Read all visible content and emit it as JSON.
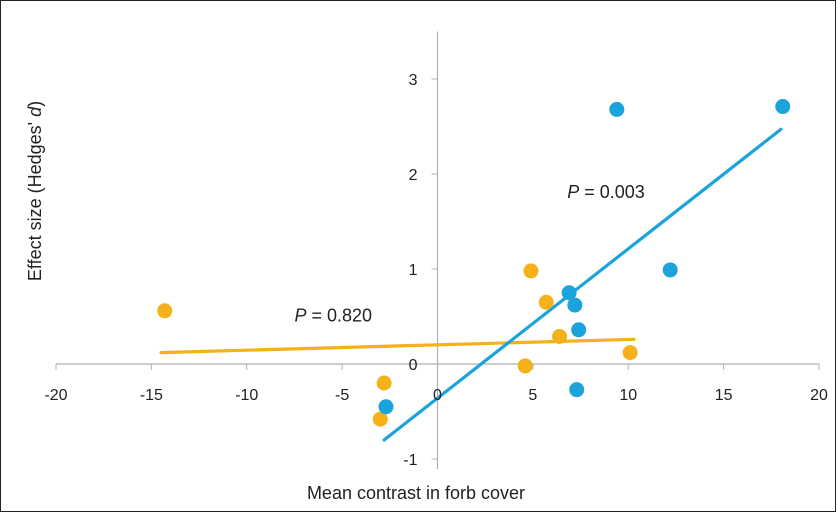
{
  "chart_data": {
    "type": "scatter",
    "xlabel": "Mean contrast in forb cover",
    "ylabel_parts": {
      "main": "Effect size (Hedges' ",
      "italic": "d",
      "end": ")"
    },
    "xlim": [
      -20,
      20
    ],
    "ylim": [
      -1,
      3.5
    ],
    "x_ticks": [
      -20,
      -15,
      -10,
      -5,
      0,
      5,
      10,
      15,
      20
    ],
    "x_tick_labels": [
      "-20",
      "-15",
      "-10",
      "-5",
      "0",
      "5",
      "10",
      "15",
      "20"
    ],
    "y_ticks": [
      -1,
      0,
      1,
      2,
      3
    ],
    "y_tick_labels": [
      "-1",
      "0",
      "1",
      "2",
      "3"
    ],
    "grid": false,
    "series": [
      {
        "color": "#f5b119",
        "points": [
          {
            "x": -14.3,
            "y": 0.56
          },
          {
            "x": -2.8,
            "y": -0.2
          },
          {
            "x": -3.0,
            "y": -0.58
          },
          {
            "x": 4.6,
            "y": -0.02
          },
          {
            "x": 4.9,
            "y": 0.98
          },
          {
            "x": 5.7,
            "y": 0.65
          },
          {
            "x": 6.4,
            "y": 0.29
          },
          {
            "x": 10.1,
            "y": 0.12
          }
        ],
        "trend": {
          "x": [
            -14.5,
            10.3
          ],
          "y": [
            0.12,
            0.26
          ]
        },
        "annotation": {
          "prefix": "P",
          "text": " = 0.820",
          "x": -7.5,
          "y": 0.45
        }
      },
      {
        "color": "#1ba3dc",
        "points": [
          {
            "x": -2.7,
            "y": -0.45
          },
          {
            "x": 6.9,
            "y": 0.75
          },
          {
            "x": 7.2,
            "y": 0.62
          },
          {
            "x": 7.4,
            "y": 0.36
          },
          {
            "x": 7.3,
            "y": -0.27
          },
          {
            "x": 9.4,
            "y": 2.68
          },
          {
            "x": 12.2,
            "y": 0.99
          },
          {
            "x": 18.1,
            "y": 2.71
          }
        ],
        "trend": {
          "x": [
            -2.8,
            18.0
          ],
          "y": [
            -0.8,
            2.47
          ]
        },
        "annotation": {
          "prefix": "P",
          "text": " = 0.003",
          "x": 6.8,
          "y": 1.75
        }
      }
    ]
  }
}
